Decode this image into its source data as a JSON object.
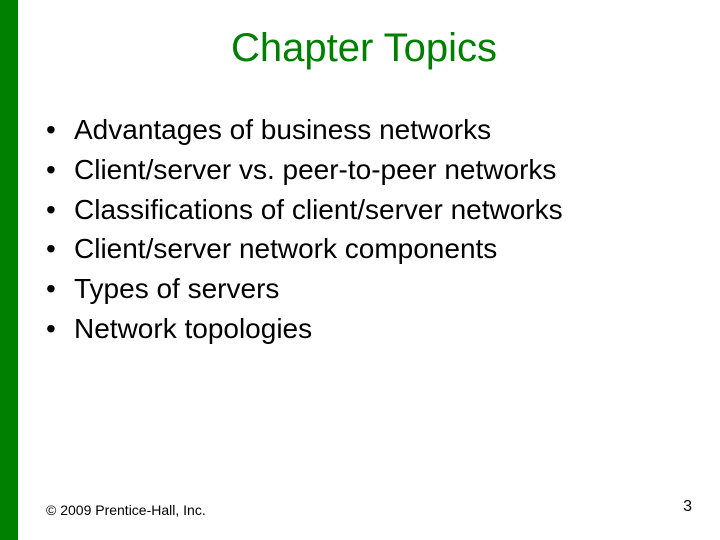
{
  "colors": {
    "sidebar": "#008000",
    "title": "#008000",
    "body_text": "#000000",
    "footer_text": "#000000",
    "background": "#ffffff"
  },
  "typography": {
    "title_fontsize": 40,
    "bullet_fontsize": 28,
    "footer_fontsize": 14,
    "page_number_fontsize": 16,
    "font_family": "Arial"
  },
  "title": "Chapter Topics",
  "bullets": [
    "Advantages of business networks",
    "Client/server vs. peer-to-peer networks",
    "Classifications of client/server networks",
    "Client/server network components",
    "Types of servers",
    "Network topologies"
  ],
  "footer": {
    "copyright": "© 2009 Prentice-Hall, Inc.",
    "page_number": "3"
  }
}
